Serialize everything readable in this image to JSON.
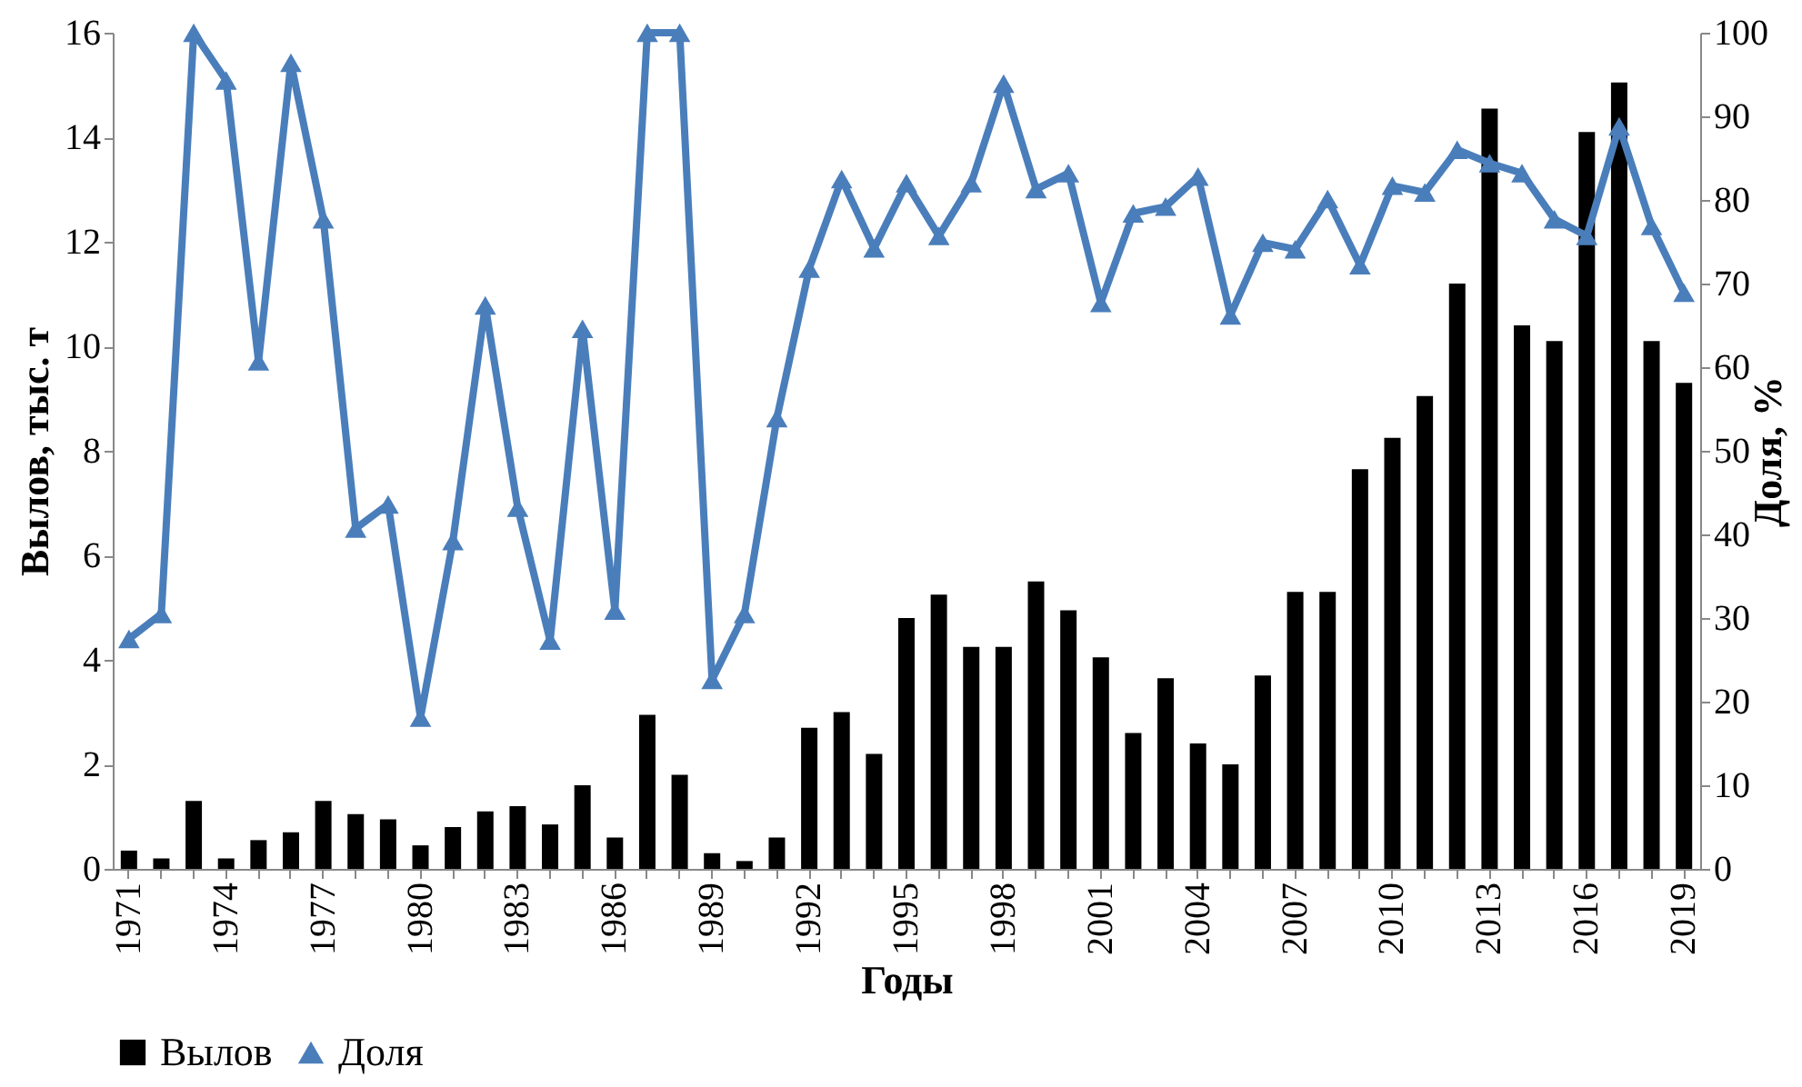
{
  "chart_data": {
    "type": "bar",
    "xlabel": "Годы",
    "ylabel": "Вылов, тыс. т",
    "y2label": "Доля, %",
    "categories": [
      "1971",
      null,
      null,
      "1974",
      null,
      null,
      "1977",
      null,
      null,
      "1980",
      null,
      null,
      "1983",
      null,
      null,
      "1986",
      null,
      null,
      "1989",
      null,
      null,
      "1992",
      null,
      null,
      "1995",
      null,
      null,
      "1998",
      null,
      null,
      "2001",
      null,
      null,
      "2004",
      null,
      null,
      "2007",
      null,
      null,
      "2010",
      null,
      null,
      "2013",
      null,
      null,
      "2016",
      null,
      null,
      "2019"
    ],
    "series": [
      {
        "name": "Вылов",
        "color": "#000000",
        "values": [
          0.35,
          0.2,
          1.3,
          0.2,
          0.55,
          0.7,
          1.3,
          1.05,
          0.95,
          0.45,
          0.8,
          1.1,
          1.2,
          0.85,
          1.6,
          0.6,
          2.95,
          1.8,
          0.3,
          0.15,
          0.6,
          2.7,
          3.0,
          2.2,
          4.8,
          5.25,
          4.25,
          4.25,
          5.5,
          4.95,
          4.05,
          2.6,
          3.65,
          2.4,
          2.0,
          3.7,
          5.3,
          5.3,
          7.65,
          8.25,
          9.05,
          11.2,
          14.55,
          10.4,
          10.1,
          14.1,
          15.05,
          10.1,
          9.3
        ]
      },
      {
        "name": "Доля",
        "color": "#4a7ebb",
        "type": "line",
        "axis": "y2",
        "marker": "triangle",
        "values": [
          27.5,
          30.5,
          100,
          94.3,
          60.7,
          96.4,
          77.7,
          40.7,
          43.6,
          18.1,
          39.2,
          67.4,
          43.2,
          27.3,
          64.6,
          30.9,
          100,
          100,
          22.6,
          30.5,
          53.9,
          71.8,
          82.5,
          74.2,
          82,
          75.7,
          82,
          93.9,
          81.3,
          83.2,
          67.7,
          78.4,
          79.2,
          82.8,
          66.2,
          74.9,
          74.1,
          80.1,
          72.2,
          81.7,
          80.9,
          86,
          84.4,
          83.2,
          77.7,
          75.7,
          88.8,
          76.9,
          68.9
        ]
      }
    ],
    "ylim": [
      0,
      16
    ],
    "yticks": [
      0,
      2,
      4,
      6,
      8,
      10,
      12,
      14,
      16
    ],
    "y2lim": [
      0,
      100
    ],
    "y2ticks": [
      0,
      10,
      20,
      30,
      40,
      50,
      60,
      70,
      80,
      90,
      100
    ],
    "grid": false,
    "legend": "bottom"
  }
}
